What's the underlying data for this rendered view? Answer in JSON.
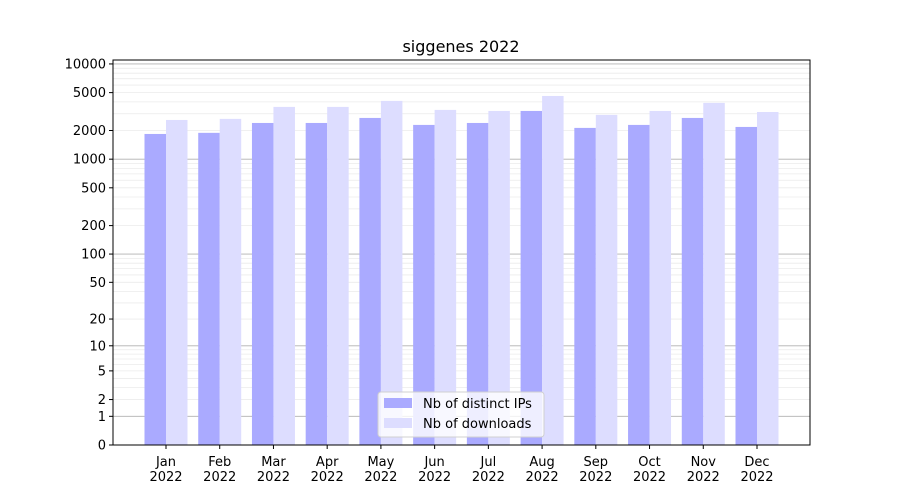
{
  "chart_data": {
    "type": "bar",
    "title": "siggenes 2022",
    "xlabel": "",
    "ylabel": "",
    "yscale": "log(x+1)",
    "ylim": [
      0,
      11000
    ],
    "yticks": [
      0,
      1,
      2,
      5,
      10,
      20,
      50,
      100,
      200,
      500,
      1000,
      2000,
      5000,
      10000
    ],
    "grid": true,
    "legend_position": "bottom-center",
    "categories": [
      "Jan\n2022",
      "Feb\n2022",
      "Mar\n2022",
      "Apr\n2022",
      "May\n2022",
      "Jun\n2022",
      "Jul\n2022",
      "Aug\n2022",
      "Sep\n2022",
      "Oct\n2022",
      "Nov\n2022",
      "Dec\n2022"
    ],
    "series": [
      {
        "name": "Nb of distinct IPs",
        "color": "#aaaaff",
        "values": [
          1840,
          1890,
          2400,
          2400,
          2710,
          2290,
          2400,
          3210,
          2130,
          2290,
          2710,
          2180
        ]
      },
      {
        "name": "Nb of downloads",
        "color": "#ddddff",
        "values": [
          2580,
          2650,
          3540,
          3540,
          4090,
          3290,
          3210,
          4610,
          2920,
          3210,
          3900,
          3130
        ]
      }
    ]
  }
}
